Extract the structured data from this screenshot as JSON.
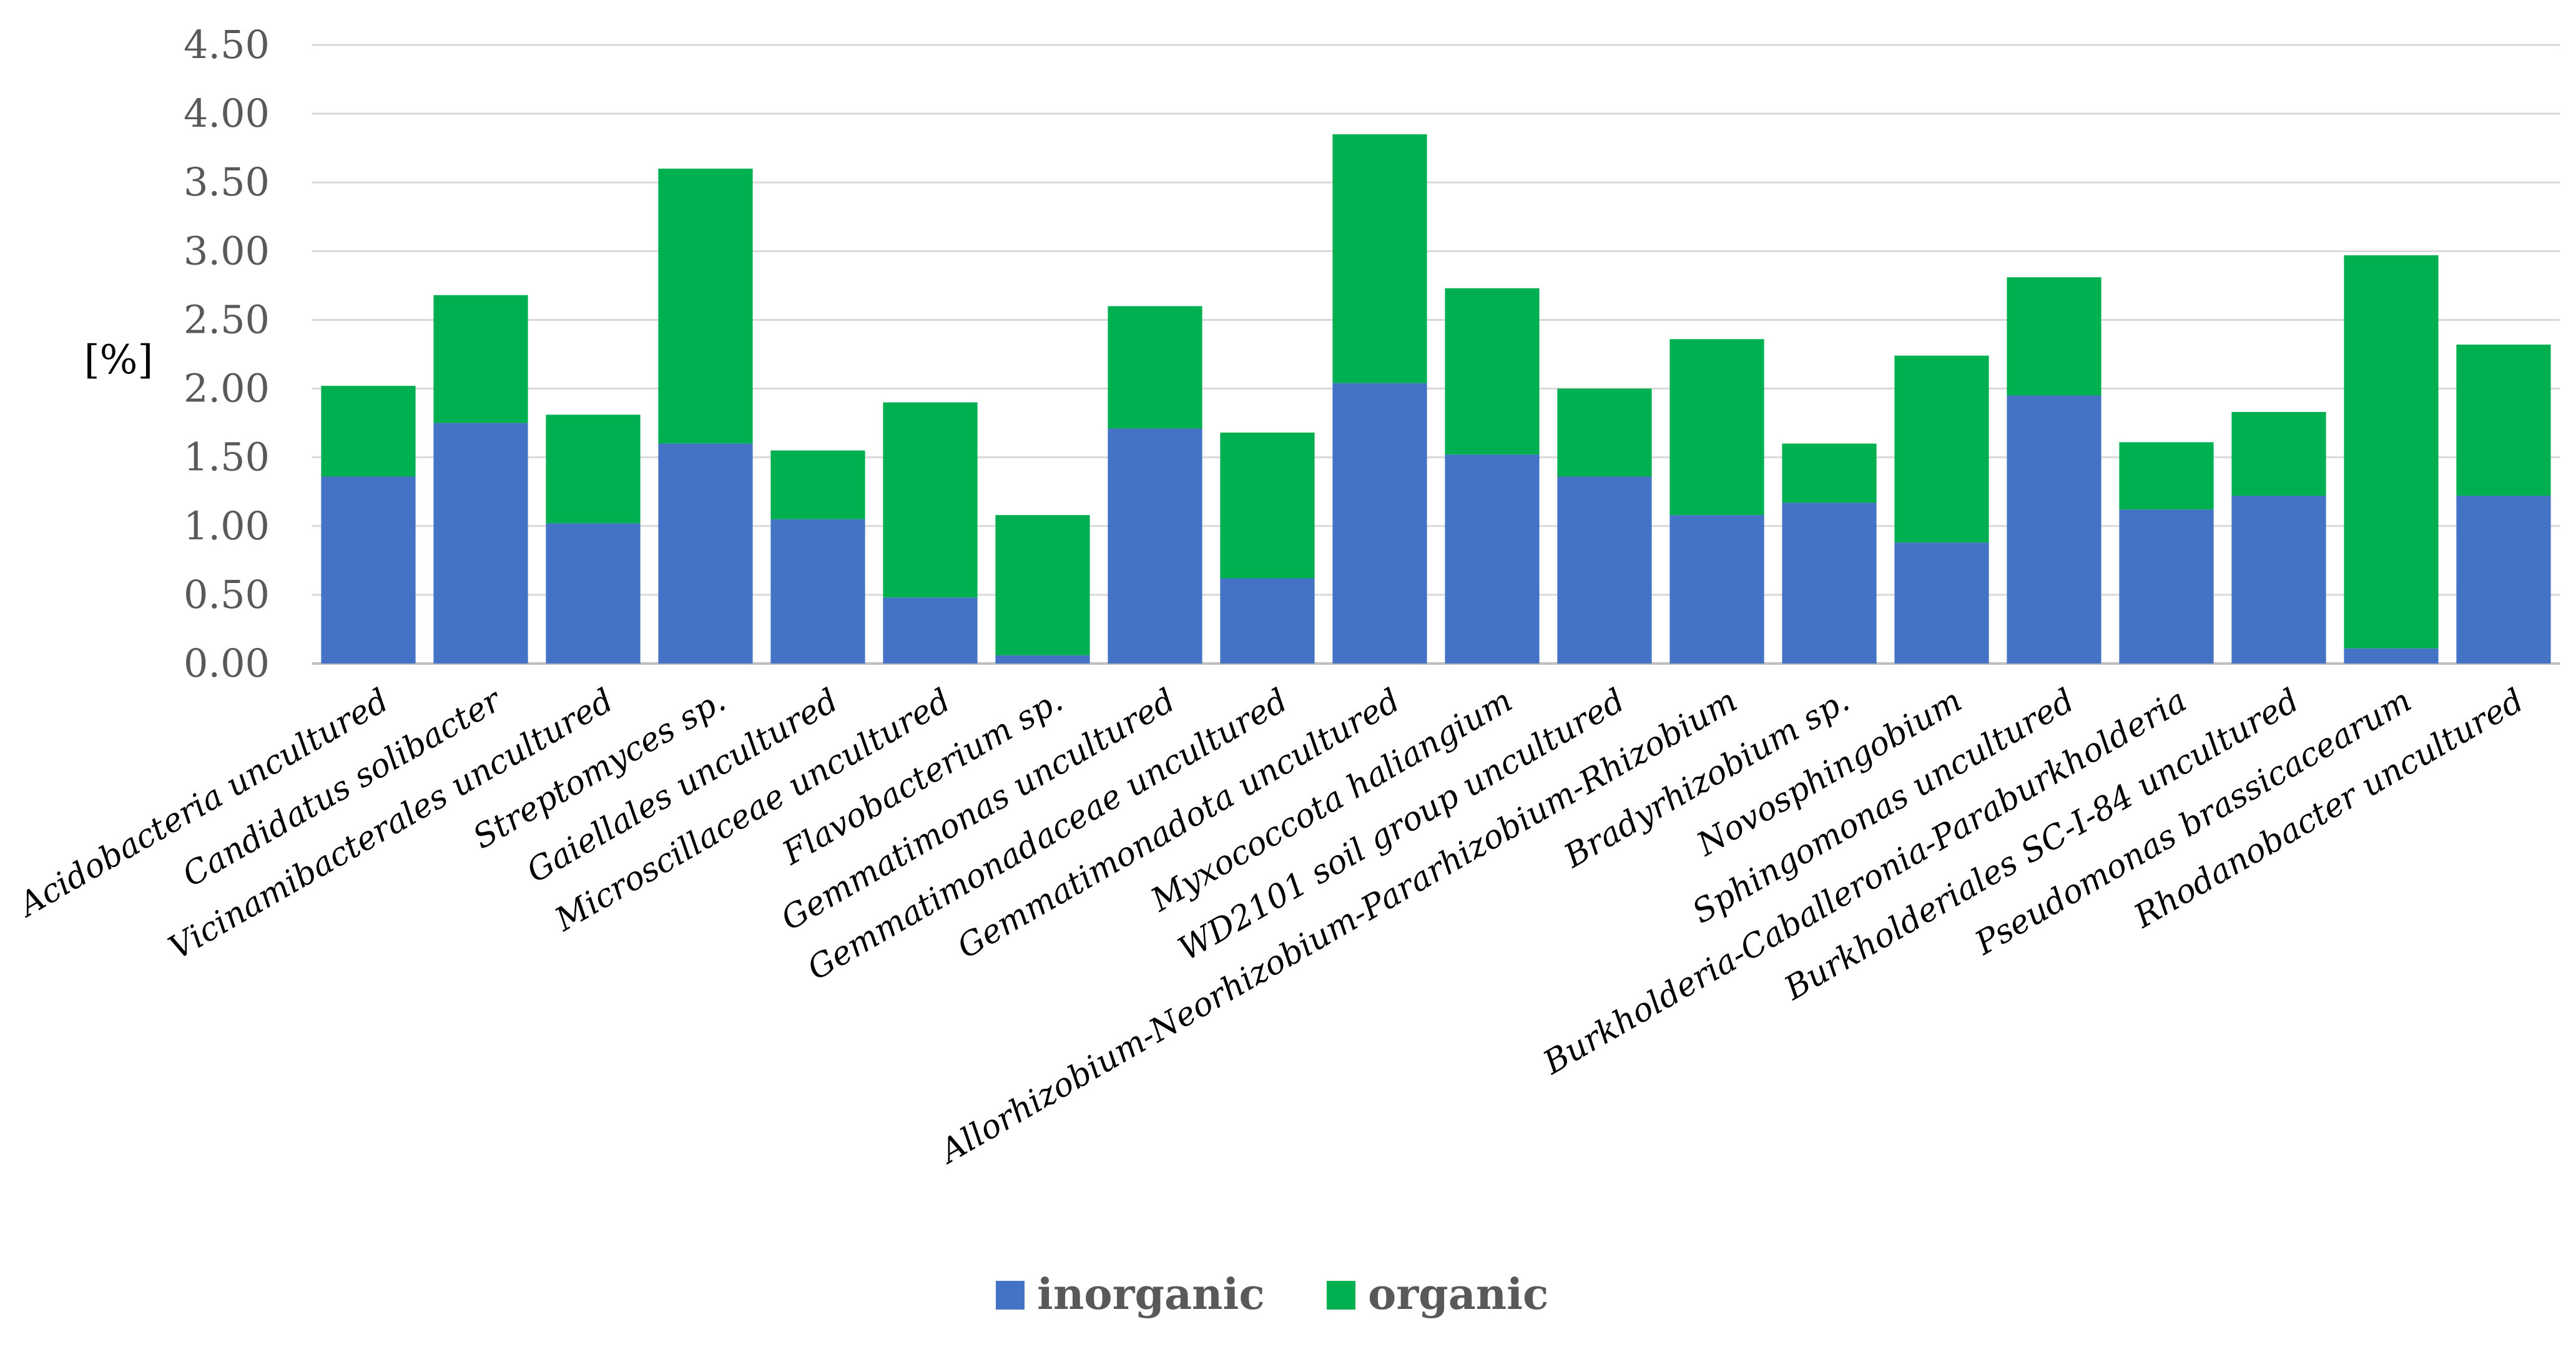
{
  "chart_data": {
    "type": "bar",
    "stacked": true,
    "ylabel": "[%]",
    "ylim": [
      0,
      4.5
    ],
    "yticks": [
      "0.00",
      "0.50",
      "1.00",
      "1.50",
      "2.00",
      "2.50",
      "3.00",
      "3.50",
      "4.00",
      "4.50"
    ],
    "grid": true,
    "legend_position": "bottom",
    "categories": [
      "Acidobacteria uncultured",
      "Candidatus solibacter",
      "Vicinamibacterales uncultured",
      "Streptomyces sp.",
      "Gaiellales uncultured",
      "Microscillaceae uncultured",
      "Flavobacterium sp.",
      "Gemmatimonas uncultured",
      "Gemmatimonadaceae uncultured",
      "Gemmatimonadota uncultured",
      "Myxococcota haliangium",
      "WD2101 soil group uncultured",
      "Allorhizobium-Neorhizobium-Pararhizobium-Rhizobium",
      "Bradyrhizobium sp.",
      "Novosphingobium",
      "Sphingomonas uncultured",
      "Burkholderia-Caballeronia-Paraburkholderia",
      "Burkholderiales SC-I-84 uncultured",
      "Pseudomonas brassicacearum",
      "Rhodanobacter uncultured"
    ],
    "series": [
      {
        "name": "inorganic",
        "color": "#4472C4",
        "values": [
          1.36,
          1.75,
          1.02,
          1.6,
          1.05,
          0.48,
          0.06,
          1.71,
          0.62,
          2.04,
          1.52,
          1.36,
          1.08,
          1.17,
          0.88,
          1.95,
          1.12,
          1.22,
          0.11,
          1.22
        ]
      },
      {
        "name": "organic",
        "color": "#00B050",
        "values": [
          0.66,
          0.93,
          0.79,
          2.0,
          0.5,
          1.42,
          1.02,
          0.89,
          1.06,
          1.81,
          1.21,
          0.64,
          1.28,
          0.43,
          1.36,
          0.86,
          0.49,
          0.61,
          2.86,
          1.1
        ]
      }
    ]
  }
}
